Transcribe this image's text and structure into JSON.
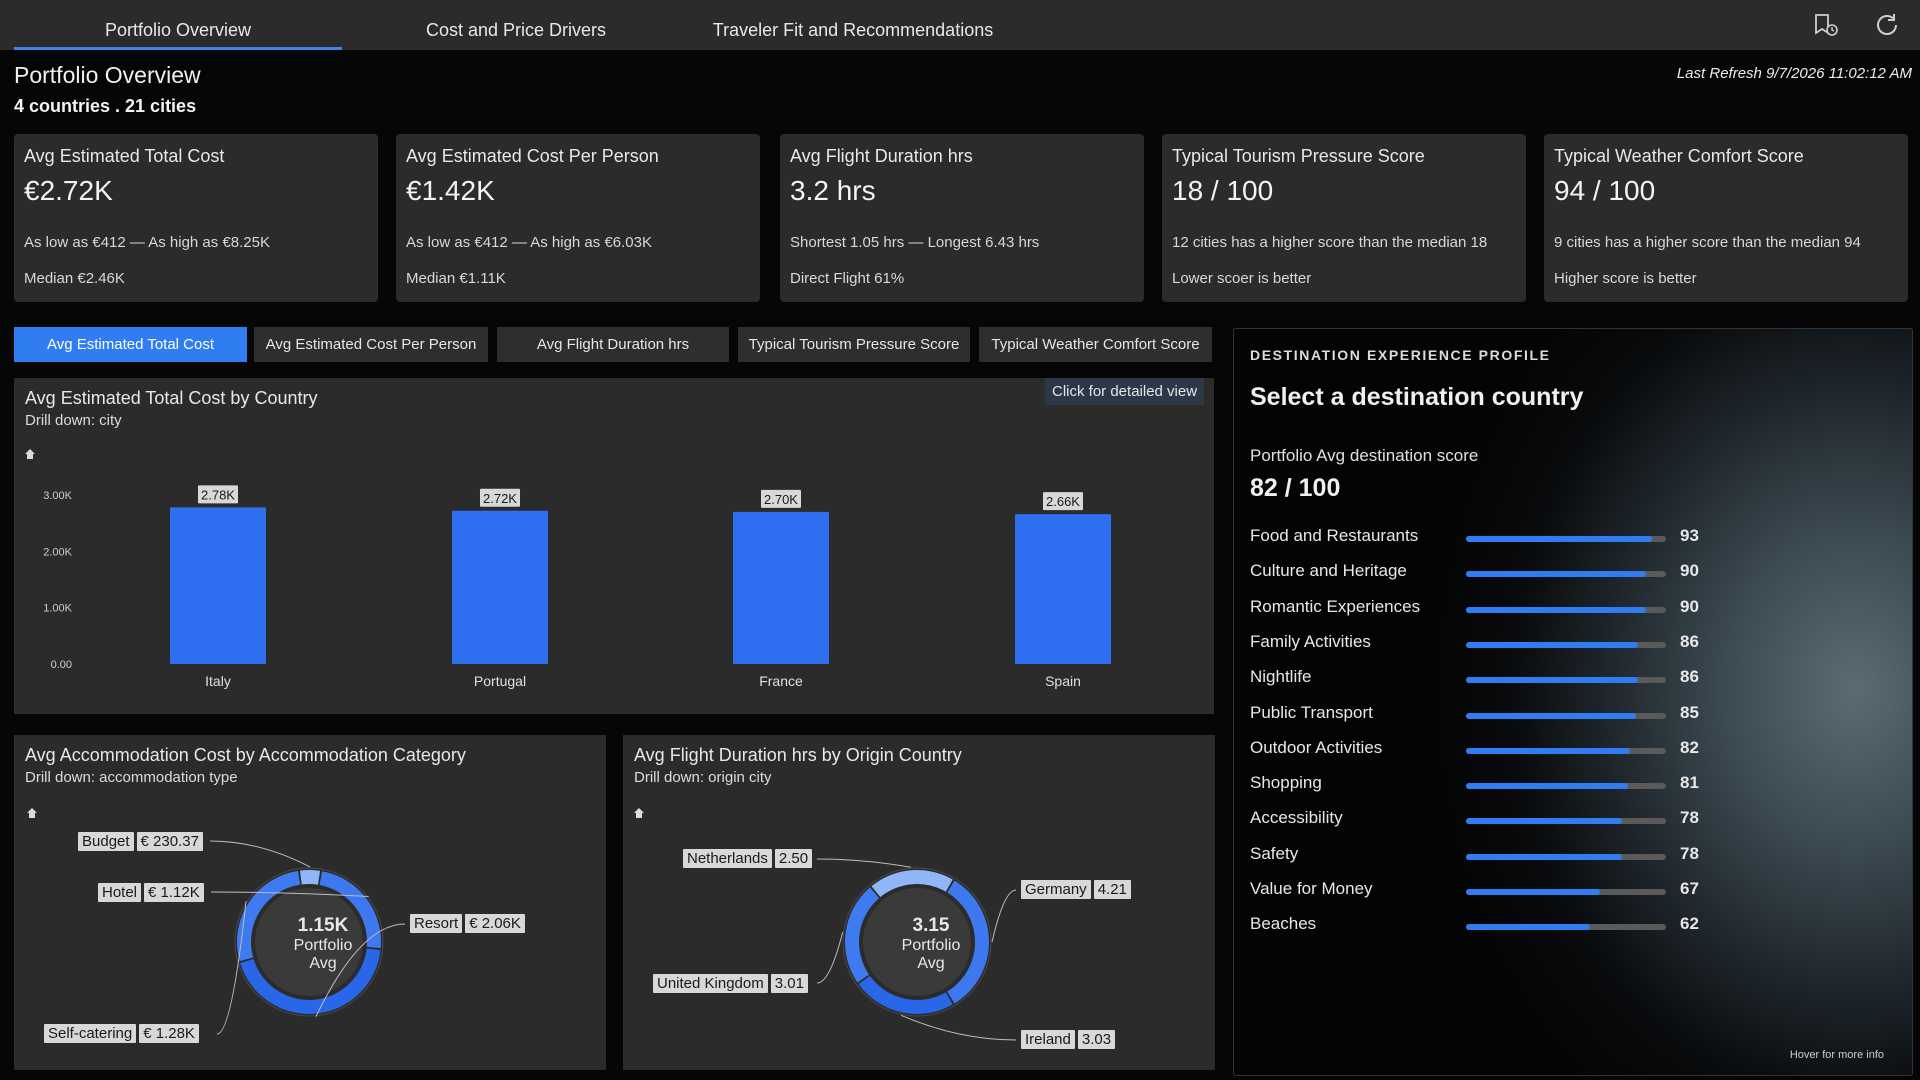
{
  "nav": {
    "tabs": [
      "Portfolio Overview",
      "Cost and Price Drivers",
      "Traveler Fit and Recommendations"
    ],
    "active_tab": 0,
    "icons": [
      "bookmark-icon",
      "refresh-icon"
    ]
  },
  "header": {
    "title": "Portfolio Overview",
    "subtitle": "4 countries . 21 cities",
    "last_refresh": "Last Refresh 9/7/2026 11:02:12 AM"
  },
  "kpis": [
    {
      "title": "Avg Estimated Total Cost",
      "value": "€2.72K",
      "line1": "As low as €412 — As high as €8.25K",
      "line2": "Median €2.46K"
    },
    {
      "title": "Avg Estimated Cost Per Person",
      "value": "€1.42K",
      "line1": "As low as €412 — As high as €6.03K",
      "line2": "Median €1.11K"
    },
    {
      "title": "Avg Flight Duration hrs",
      "value": "3.2 hrs",
      "line1": "Shortest 1.05 hrs — Longest 6.43 hrs",
      "line2": "Direct Flight 61%"
    },
    {
      "title": "Typical Tourism Pressure Score",
      "value": "18 / 100",
      "line1": "12 cities has a higher score than the median 18",
      "line2": "Lower scoer is better"
    },
    {
      "title": "Typical Weather Comfort Score",
      "value": "94 / 100",
      "line1": "9 cities has a higher score than the median 94",
      "line2": "Higher score is better"
    }
  ],
  "metric_buttons": [
    "Avg Estimated Total Cost",
    "Avg Estimated Cost Per Person",
    "Avg Flight Duration hrs",
    "Typical Tourism Pressure Score",
    "Typical Weather Comfort Score"
  ],
  "active_metric": 0,
  "country_chart": {
    "title": "Avg Estimated Total Cost by Country",
    "subtitle": "Drill down: city",
    "detail_button": "Click for detailed view"
  },
  "accommodation_chart": {
    "title": "Avg Accommodation Cost by Accommodation Category",
    "subtitle": "Drill down: accommodation type",
    "center_value": "1.15K",
    "center_label1": "Portfolio",
    "center_label2": "Avg"
  },
  "flight_chart": {
    "title": "Avg Flight Duration hrs by Origin Country",
    "subtitle": "Drill down: origin city",
    "center_value": "3.15",
    "center_label1": "Portfolio",
    "center_label2": "Avg"
  },
  "chart_data": [
    {
      "type": "bar",
      "title": "Avg Estimated Total Cost by Country",
      "categories": [
        "Italy",
        "Portugal",
        "France",
        "Spain"
      ],
      "values": [
        2780,
        2720,
        2700,
        2660
      ],
      "data_labels": [
        "2.78K",
        "2.72K",
        "2.70K",
        "2.66K"
      ],
      "y_ticks": [
        "0.00",
        "1.00K",
        "2.00K",
        "3.00K"
      ],
      "ylim": [
        0,
        3000
      ],
      "color": "#2f6ff2"
    },
    {
      "type": "pie",
      "title": "Avg Accommodation Cost by Accommodation Category",
      "categories": [
        "Budget",
        "Hotel",
        "Resort",
        "Self-catering"
      ],
      "values": [
        230.37,
        1120,
        2060,
        1280
      ],
      "value_labels": [
        "€ 230.37",
        "€ 1.12K",
        "€ 2.06K",
        "€ 1.28K"
      ]
    },
    {
      "type": "pie",
      "title": "Avg Flight Duration hrs by Origin Country",
      "categories": [
        "Netherlands",
        "Germany",
        "Ireland",
        "United Kingdom"
      ],
      "values": [
        2.5,
        4.21,
        3.03,
        3.01
      ],
      "value_labels": [
        "2.50",
        "4.21",
        "3.03",
        "3.01"
      ]
    },
    {
      "type": "bar",
      "title": "Destination Experience Profile",
      "categories": [
        "Food and Restaurants",
        "Culture and Heritage",
        "Romantic Experiences",
        "Family Activities",
        "Nightlife",
        "Public Transport",
        "Outdoor Activities",
        "Shopping",
        "Accessibility",
        "Safety",
        "Value for Money",
        "Beaches"
      ],
      "values": [
        93,
        90,
        90,
        86,
        86,
        85,
        82,
        81,
        78,
        78,
        67,
        62
      ],
      "ylim": [
        0,
        100
      ]
    }
  ],
  "profile": {
    "section_label": "DESTINATION EXPERIENCE PROFILE",
    "heading": "Select a destination country",
    "avg_label": "Portfolio Avg destination score",
    "avg_value": "82 / 100",
    "footer": "Hover for more info"
  },
  "colors": {
    "accent": "#2f7df0",
    "bar": "#2f6ff2",
    "panel": "#2b2b2b",
    "background": "#060606"
  }
}
